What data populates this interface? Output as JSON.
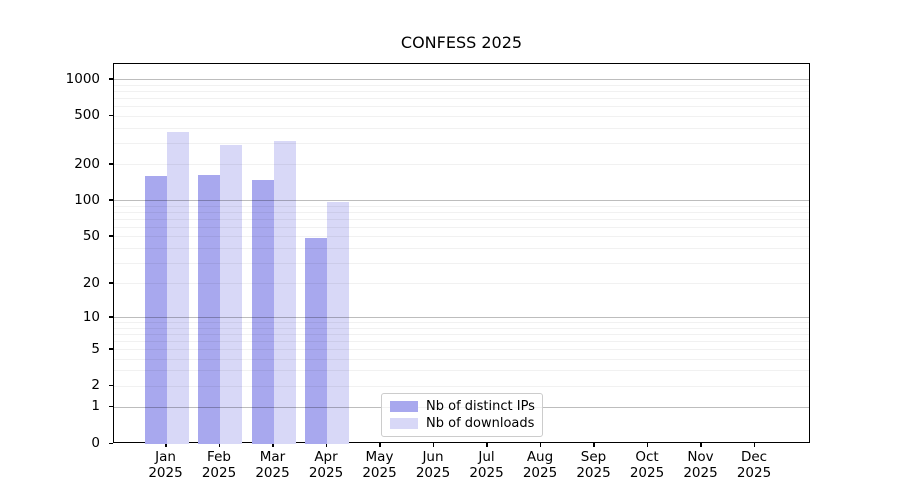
{
  "chart_data": {
    "type": "bar",
    "title": "CONFESS 2025",
    "year": "2025",
    "months": [
      "Jan",
      "Feb",
      "Mar",
      "Apr",
      "May",
      "Jun",
      "Jul",
      "Aug",
      "Sep",
      "Oct",
      "Nov",
      "Dec"
    ],
    "series": [
      {
        "name": "Nb of distinct IPs",
        "color": "#a8a8ee",
        "values": [
          160,
          165,
          148,
          49,
          0,
          0,
          0,
          0,
          0,
          0,
          0,
          0
        ]
      },
      {
        "name": "Nb of downloads",
        "color": "#d8d8f7",
        "values": [
          373,
          290,
          315,
          97,
          0,
          0,
          0,
          0,
          0,
          0,
          0,
          0
        ]
      }
    ],
    "yscale": "log1p",
    "yticks": [
      0,
      1,
      2,
      5,
      10,
      20,
      50,
      100,
      200,
      500,
      1000
    ],
    "ylim": [
      0,
      1354
    ],
    "grid": {
      "major_values": [
        1,
        10,
        100,
        1000
      ],
      "minor_values": [
        2,
        3,
        4,
        5,
        6,
        7,
        8,
        9,
        20,
        30,
        40,
        50,
        60,
        70,
        80,
        90,
        200,
        300,
        400,
        500,
        600,
        700,
        800,
        900
      ]
    },
    "legend": {
      "position": "bottom-center"
    },
    "colors": {
      "axis": "#000000",
      "major_grid": "#bdbdbd",
      "minor_grid": "#ededed"
    }
  }
}
